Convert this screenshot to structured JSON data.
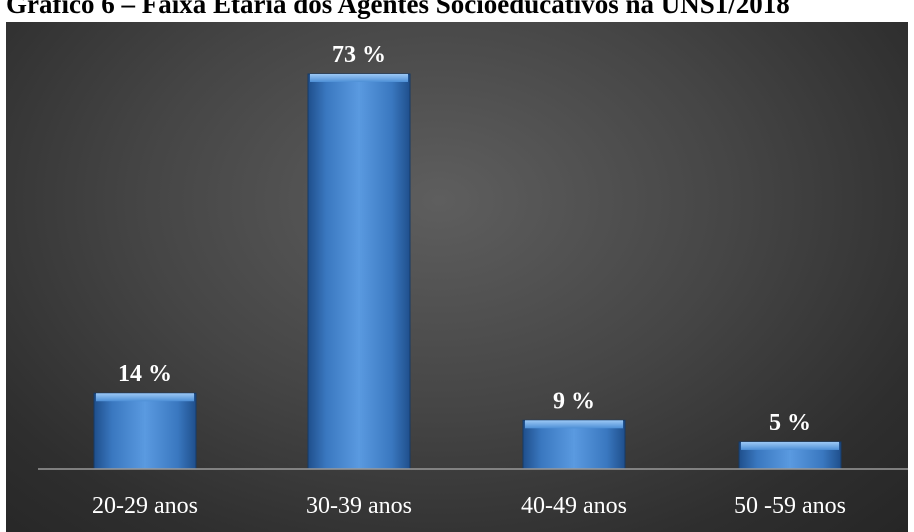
{
  "title": "Gráfico 6 – Faixa Etária dos Agentes Socioeducativos na UNS1/2018",
  "chart_data": {
    "type": "bar",
    "title": "Gráfico 6 – Faixa Etária dos Agentes Socioeducativos na UNS1/2018",
    "categories": [
      "20-29 anos",
      "30-39 anos",
      "40-49 anos",
      "50 -59 anos"
    ],
    "values": [
      14,
      73,
      9,
      5
    ],
    "value_labels": [
      "14 %",
      "73 %",
      "9 %",
      "5 %"
    ],
    "ylim": [
      0,
      75
    ],
    "grid": false,
    "legend": "none",
    "bar_color": "#3d7fc8",
    "background_color": "#3c3c3c"
  }
}
